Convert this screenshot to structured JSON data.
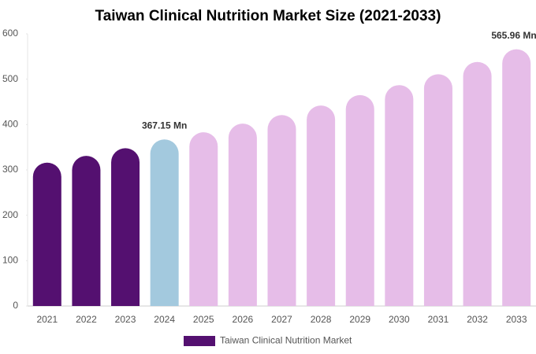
{
  "chart_data": {
    "type": "bar",
    "title": "Taiwan Clinical Nutrition Market Size (2021-2033)",
    "categories": [
      "2021",
      "2022",
      "2023",
      "2024",
      "2025",
      "2026",
      "2027",
      "2028",
      "2029",
      "2030",
      "2031",
      "2032",
      "2033"
    ],
    "series": [
      {
        "name": "Taiwan Clinical Nutrition Market",
        "color": "#541070",
        "values": [
          316,
          331,
          348,
          367.15,
          383,
          402,
          421,
          442,
          465,
          487,
          511,
          538,
          565.96
        ],
        "value_labels": [
          null,
          null,
          null,
          "367.15 Mn",
          null,
          null,
          null,
          null,
          null,
          null,
          null,
          null,
          "565.96 Mn"
        ],
        "colors": [
          "#541070",
          "#541070",
          "#541070",
          "#a3c9de",
          "#e6bde8",
          "#e6bde8",
          "#e6bde8",
          "#e6bde8",
          "#e6bde8",
          "#e6bde8",
          "#e6bde8",
          "#e6bde8",
          "#e6bde8"
        ]
      }
    ],
    "ylim": [
      0,
      600
    ],
    "yticks": [
      0,
      100,
      200,
      300,
      400,
      500,
      600
    ],
    "grid": false
  }
}
